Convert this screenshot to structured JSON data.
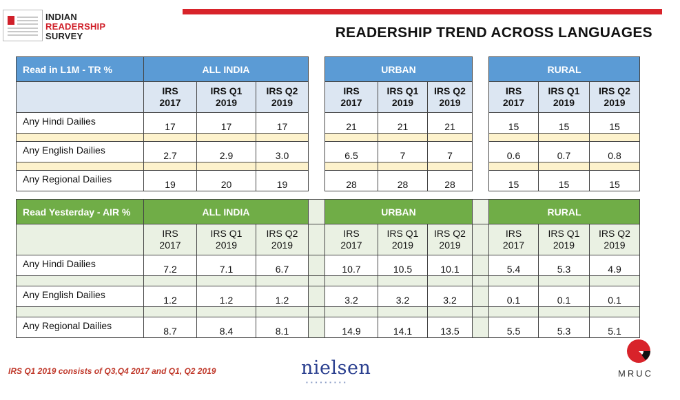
{
  "logo": {
    "line1": "INDIAN",
    "line2": "READERSHIP",
    "line3": "SURVEY"
  },
  "title": "READERSHIP TREND ACROSS LANGUAGES",
  "columns": {
    "groups": [
      "ALL INDIA",
      "URBAN",
      "RURAL"
    ],
    "t1_sub": [
      "IRS\n2017",
      "IRS Q1\n2019",
      "IRS Q2\n2019"
    ]
  },
  "table1": {
    "label": "Read in L1M  - TR %",
    "groups": [
      "ALL INDIA",
      "URBAN",
      "RURAL"
    ],
    "subheaders": [
      [
        "IRS",
        "2017"
      ],
      [
        "IRS Q1",
        "2019"
      ],
      [
        "IRS Q2",
        "2019"
      ],
      [
        "IRS",
        "2017"
      ],
      [
        "IRS Q1",
        "2019"
      ],
      [
        "IRS Q2",
        "2019"
      ],
      [
        "IRS",
        "2017"
      ],
      [
        "IRS Q1",
        "2019"
      ],
      [
        "IRS Q2",
        "2019"
      ]
    ],
    "rows": [
      {
        "label": "Any Hindi Dailies",
        "values": [
          "17",
          "17",
          "17",
          "21",
          "21",
          "21",
          "15",
          "15",
          "15"
        ]
      },
      {
        "label": "Any English Dailies",
        "values": [
          "2.7",
          "2.9",
          "3.0",
          "6.5",
          "7",
          "7",
          "0.6",
          "0.7",
          "0.8"
        ]
      },
      {
        "label": "Any Regional Dailies",
        "values": [
          "19",
          "20",
          "19",
          "28",
          "28",
          "28",
          "15",
          "15",
          "15"
        ]
      }
    ]
  },
  "table2": {
    "label": "Read Yesterday - AIR %",
    "groups": [
      "ALL INDIA",
      "URBAN",
      "RURAL"
    ],
    "subheaders": [
      [
        "IRS",
        "2017"
      ],
      [
        "IRS Q1",
        "2019"
      ],
      [
        "IRS Q2",
        "2019"
      ],
      [
        "IRS",
        "2017"
      ],
      [
        "IRS Q1",
        "2019"
      ],
      [
        "IRS Q2",
        "2019"
      ],
      [
        "IRS",
        "2017"
      ],
      [
        "IRS Q1",
        "2019"
      ],
      [
        "IRS Q2",
        "2019"
      ]
    ],
    "rows": [
      {
        "label": "Any Hindi Dailies",
        "values": [
          "7.2",
          "7.1",
          "6.7",
          "10.7",
          "10.5",
          "10.1",
          "5.4",
          "5.3",
          "4.9"
        ]
      },
      {
        "label": "Any English Dailies",
        "values": [
          "1.2",
          "1.2",
          "1.2",
          "3.2",
          "3.2",
          "3.2",
          "0.1",
          "0.1",
          "0.1"
        ]
      },
      {
        "label": "Any Regional Dailies",
        "values": [
          "8.7",
          "8.4",
          "8.1",
          "14.9",
          "14.1",
          "13.5",
          "5.5",
          "5.3",
          "5.1"
        ]
      }
    ]
  },
  "footnote": "IRS Q1 2019 consists of Q3,Q4 2017 and Q1, Q2 2019",
  "nielsen": "nielsen",
  "mruc": "MRUC",
  "colors": {
    "accent_red": "#d8232a",
    "blue_header": "#5b9bd5",
    "green_header": "#70ad47"
  }
}
